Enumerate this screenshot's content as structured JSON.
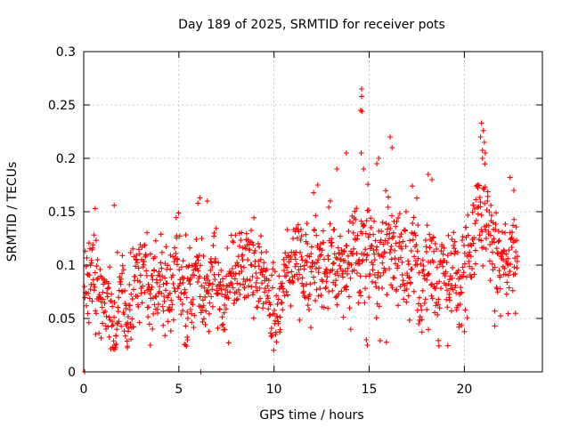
{
  "chart_data": {
    "type": "scatter",
    "title": "Day 189 of 2025, SRMTID for receiver pots",
    "xlabel": "GPS time / hours",
    "ylabel": "SRMTID / TECUs",
    "xlim": [
      0,
      24.1
    ],
    "ylim": [
      0,
      0.3
    ],
    "xticks": [
      0,
      5,
      10,
      15,
      20
    ],
    "xtick_labels": [
      "0",
      "5",
      "10",
      "15",
      "20"
    ],
    "yticks": [
      0,
      0.05,
      0.1,
      0.15,
      0.2,
      0.25,
      0.3
    ],
    "ytick_labels": [
      "0",
      "0.05",
      "0.1",
      "0.15",
      "0.2",
      "0.25",
      "0.3"
    ],
    "grid": true,
    "marker": "+",
    "series": [
      {
        "name": "pots",
        "color": "#ff0000",
        "trend": {
          "x": [
            0,
            1,
            2,
            3,
            4,
            5,
            6,
            7,
            8,
            9,
            10,
            11,
            12,
            13,
            14,
            15,
            16,
            17,
            18,
            19,
            20,
            21,
            22,
            22.8
          ],
          "y": [
            0.085,
            0.08,
            0.075,
            0.075,
            0.075,
            0.078,
            0.08,
            0.083,
            0.085,
            0.088,
            0.085,
            0.09,
            0.095,
            0.095,
            0.1,
            0.115,
            0.115,
            0.1,
            0.095,
            0.095,
            0.09,
            0.13,
            0.11,
            0.1
          ]
        },
        "x_start": 0.05,
        "x_end": 22.8,
        "count": 1300,
        "approx_range": [
          0.02,
          0.265
        ],
        "notable_points": [
          {
            "x": 14.6,
            "y": 0.265
          },
          {
            "x": 14.6,
            "y": 0.258
          },
          {
            "x": 14.55,
            "y": 0.245
          },
          {
            "x": 14.62,
            "y": 0.244
          },
          {
            "x": 14.58,
            "y": 0.205
          },
          {
            "x": 14.7,
            "y": 0.19
          },
          {
            "x": 16.1,
            "y": 0.22
          },
          {
            "x": 16.2,
            "y": 0.21
          },
          {
            "x": 15.5,
            "y": 0.2
          },
          {
            "x": 15.4,
            "y": 0.195
          },
          {
            "x": 20.9,
            "y": 0.233
          },
          {
            "x": 21.0,
            "y": 0.226
          },
          {
            "x": 20.85,
            "y": 0.22
          },
          {
            "x": 21.05,
            "y": 0.215
          },
          {
            "x": 21.1,
            "y": 0.205
          },
          {
            "x": 20.95,
            "y": 0.2
          },
          {
            "x": 18.1,
            "y": 0.185
          },
          {
            "x": 18.3,
            "y": 0.18
          },
          {
            "x": 6.1,
            "y": 0.163
          },
          {
            "x": 6.0,
            "y": 0.158
          },
          {
            "x": 6.5,
            "y": 0.16
          },
          {
            "x": 1.6,
            "y": 0.156
          },
          {
            "x": 0.6,
            "y": 0.153
          },
          {
            "x": 12.3,
            "y": 0.175
          },
          {
            "x": 13.3,
            "y": 0.19
          },
          {
            "x": 13.8,
            "y": 0.205
          },
          {
            "x": 22.4,
            "y": 0.182
          },
          {
            "x": 22.6,
            "y": 0.17
          },
          {
            "x": 14.9,
            "y": 0.025
          },
          {
            "x": 14.85,
            "y": 0.03
          },
          {
            "x": 5.4,
            "y": 0.024
          },
          {
            "x": 5.45,
            "y": 0.03
          },
          {
            "x": 3.5,
            "y": 0.025
          },
          {
            "x": 2.3,
            "y": 0.024
          },
          {
            "x": 21.6,
            "y": 0.043
          },
          {
            "x": 17.6,
            "y": 0.045
          }
        ],
        "zero_points": [
          {
            "x": 0.05,
            "y": 0
          },
          {
            "x": 6.15,
            "y": 0
          }
        ]
      }
    ]
  }
}
